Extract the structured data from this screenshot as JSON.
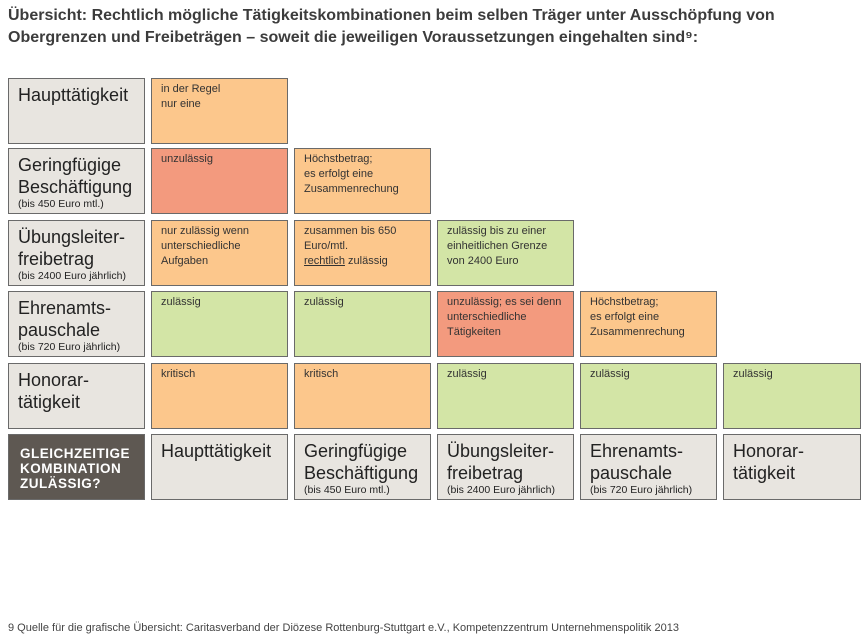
{
  "title": "Übersicht: Rechtlich mögliche Tätigkeitskombinationen beim selben Träger unter Ausschöpfung von Obergrenzen und Freibeträgen – soweit die jeweiligen Voraussetzungen eingehalten sind⁹:",
  "rows": [
    {
      "label": "Haupttätigkeit",
      "sub": ""
    },
    {
      "label": "Geringfügige Beschäftigung",
      "sub": "(bis 450 Euro mtl.)"
    },
    {
      "label": "Übungsleiter-freibetrag",
      "sub": "(bis 2400 Euro jährlich)"
    },
    {
      "label": "Ehrenamts-pauschale",
      "sub": "(bis 720 Euro jährlich)"
    },
    {
      "label": "Honorar-tätigkeit",
      "sub": ""
    }
  ],
  "bottom_label": [
    "GLEICHZEITIGE",
    "KOMBINATION",
    "ZULÄSSIG?"
  ],
  "columns": [
    {
      "label": "Haupttätigkeit",
      "sub": ""
    },
    {
      "label": "Geringfügige Beschäftigung",
      "sub": "(bis 450 Euro mtl.)"
    },
    {
      "label": "Übungsleiter-freibetrag",
      "sub": "(bis 2400 Euro jährlich)"
    },
    {
      "label": "Ehrenamts-pauschale",
      "sub": "(bis 720 Euro jährlich)"
    },
    {
      "label": "Honorar-tätigkeit",
      "sub": ""
    }
  ],
  "cells": [
    [
      {
        "text": "in der Regel\nnur eine",
        "status": "orange"
      }
    ],
    [
      {
        "text": "unzulässig",
        "status": "red"
      },
      {
        "text": "Höchstbetrag;\nes erfolgt eine\nZusammenrechung",
        "status": "orange"
      }
    ],
    [
      {
        "text": "nur zulässig wenn\nunterschiedliche\nAufgaben",
        "status": "orange"
      },
      {
        "text": "zusammen bis 650\nEuro/mtl.\nrechtlich zulässig",
        "status": "orange"
      },
      {
        "text": "zulässig bis zu einer\neinheitlichen Grenze\nvon 2400 Euro",
        "status": "green"
      }
    ],
    [
      {
        "text": "zulässig",
        "status": "green"
      },
      {
        "text": "zulässig",
        "status": "green"
      },
      {
        "text": "unzulässig; es sei denn\nunterschiedliche\nTätigkeiten",
        "status": "red"
      },
      {
        "text": "Höchstbetrag;\nes erfolgt eine\nZusammenrechung",
        "status": "orange"
      }
    ],
    [
      {
        "text": "kritisch",
        "status": "orange"
      },
      {
        "text": "kritisch",
        "status": "orange"
      },
      {
        "text": "zulässig",
        "status": "green"
      },
      {
        "text": "zulässig",
        "status": "green"
      },
      {
        "text": "zulässig",
        "status": "green"
      }
    ]
  ],
  "footnote": "9   Quelle für die grafische Übersicht: Caritasverband der Diözese Rottenburg-Stuttgart e.V., Kompetenzzentrum Unternehmenspolitik 2013"
}
